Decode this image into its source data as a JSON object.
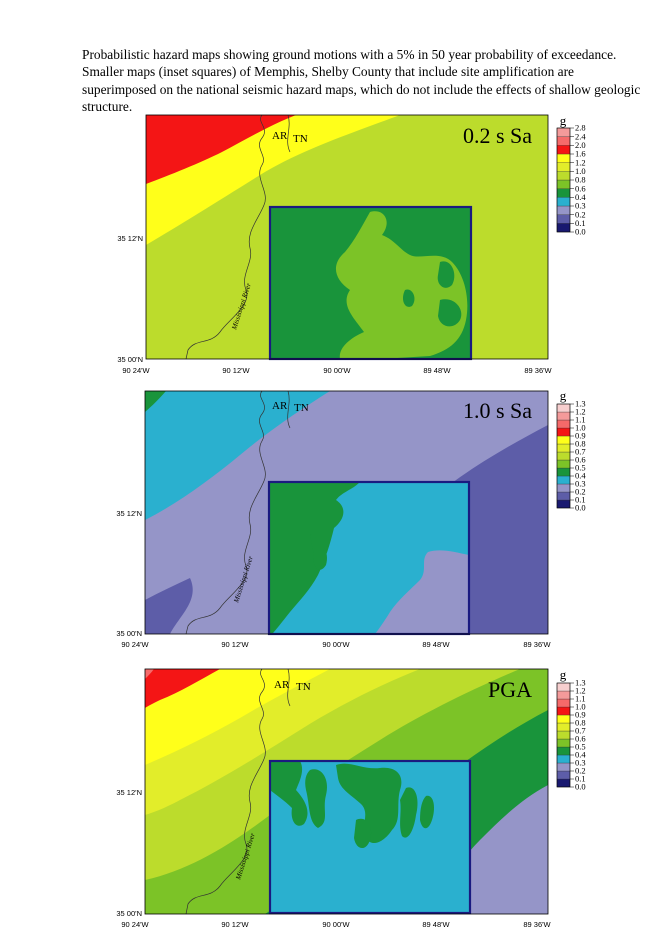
{
  "caption": "Probabilistic hazard maps showing ground motions with a 5% in 50 year probability of exceedance. Smaller maps (inset squares) of Memphis, Shelby County that include site amplification are superimposed on the national seismic hazard maps, which do not include the effects of shallow geologic structure.",
  "place_labels": {
    "arkansas": "AR",
    "tennessee": "TN",
    "river": "Mississippi River"
  },
  "axes": {
    "lat_ticks": [
      "35 12'N",
      "35 00'N"
    ],
    "lon_ticks": [
      "90 24'W",
      "90 12'W",
      "90 00'W",
      "89 48'W",
      "89 36'W"
    ]
  },
  "legend_unit": "g",
  "colors": {
    "scale_13": [
      "#191970",
      "#5d5da8",
      "#9595c8",
      "#2ab0cf",
      "#19943b",
      "#7cc327",
      "#bcdc2c",
      "#e2ed2a",
      "#ffff1a",
      "#f41515",
      "#f56a6a",
      "#f49a9a",
      "#f7cfcf"
    ],
    "inset_border": "#1a1a80",
    "river": "#333333"
  },
  "maps": [
    {
      "title": "0.2 s Sa",
      "legend_labels": [
        "0.0",
        "0.1",
        "0.2",
        "0.3",
        "0.4",
        "0.6",
        "0.8",
        "1.0",
        "1.2",
        "1.6",
        "2.0",
        "2.4",
        "2.8"
      ],
      "regional_bands_class": [
        9,
        8,
        7,
        6
      ],
      "inset_base_class": 4,
      "inset_patch_class": 5
    },
    {
      "title": "1.0 s Sa",
      "legend_labels": [
        "0.0",
        "0.1",
        "0.2",
        "0.3",
        "0.4",
        "0.5",
        "0.6",
        "0.7",
        "0.8",
        "0.9",
        "1.0",
        "1.1",
        "1.2",
        "1.3"
      ],
      "regional_bands_class": [
        4,
        3,
        2,
        1
      ],
      "inset_base_class": 3,
      "inset_patch_class": 4,
      "inset_lower_class": 2
    },
    {
      "title": "PGA",
      "legend_labels": [
        "0.0",
        "0.1",
        "0.2",
        "0.3",
        "0.4",
        "0.5",
        "0.6",
        "0.7",
        "0.8",
        "0.9",
        "1.0",
        "1.1",
        "1.2",
        "1.3"
      ],
      "regional_bands_class": [
        9,
        8,
        7,
        6,
        5,
        4,
        2
      ],
      "inset_base_class": 3,
      "inset_patch_class": 4
    }
  ]
}
